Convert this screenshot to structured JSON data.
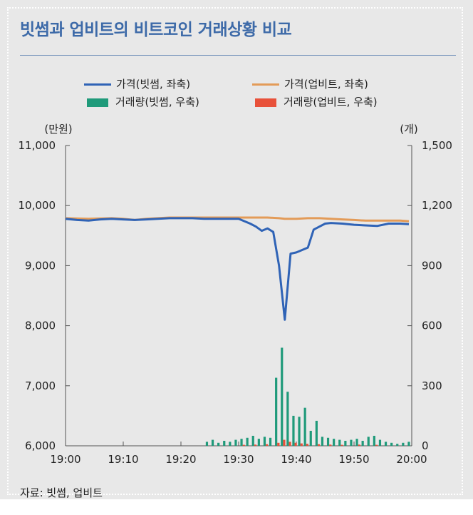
{
  "chart_data": {
    "type": "line+bar",
    "title": "빗썸과 업비트의 비트코인 거래상황 비교",
    "source": "자료: 빗썸, 업비트",
    "y_left_unit": "(만원)",
    "y_right_unit": "(개)",
    "y_left_lim": [
      6000,
      11000
    ],
    "y_right_lim": [
      0,
      1500
    ],
    "y_left_ticks": [
      "11,000",
      "10,000",
      "9,000",
      "8,000",
      "7,000",
      "6,000"
    ],
    "y_right_ticks": [
      "1,500",
      "1,200",
      "900",
      "600",
      "300",
      "0"
    ],
    "x_ticks": [
      "19:00",
      "19:10",
      "19:20",
      "19:30",
      "19:40",
      "19:50",
      "20:00"
    ],
    "x_minutes": [
      0,
      10,
      20,
      30,
      40,
      50,
      60
    ],
    "legend": [
      {
        "label": "가격(빗썸, 좌축)",
        "color": "#2f63b6",
        "kind": "line"
      },
      {
        "label": "가격(업비트, 좌축)",
        "color": "#e39b58",
        "kind": "line"
      },
      {
        "label": "거래량(빗썸, 우축)",
        "color": "#1f9a7a",
        "kind": "bar"
      },
      {
        "label": "거래량(업비트, 우축)",
        "color": "#e8513a",
        "kind": "bar"
      }
    ],
    "series_price_bithumb": [
      [
        0,
        9780
      ],
      [
        2,
        9760
      ],
      [
        4,
        9750
      ],
      [
        6,
        9770
      ],
      [
        8,
        9780
      ],
      [
        10,
        9770
      ],
      [
        12,
        9760
      ],
      [
        14,
        9770
      ],
      [
        16,
        9780
      ],
      [
        18,
        9790
      ],
      [
        20,
        9790
      ],
      [
        22,
        9790
      ],
      [
        24,
        9780
      ],
      [
        26,
        9780
      ],
      [
        28,
        9780
      ],
      [
        30,
        9780
      ],
      [
        31,
        9740
      ],
      [
        32,
        9700
      ],
      [
        33,
        9650
      ],
      [
        34,
        9580
      ],
      [
        35,
        9620
      ],
      [
        36,
        9560
      ],
      [
        37,
        9000
      ],
      [
        38,
        8100
      ],
      [
        39,
        9200
      ],
      [
        40,
        9220
      ],
      [
        41,
        9260
      ],
      [
        42,
        9300
      ],
      [
        43,
        9600
      ],
      [
        44,
        9650
      ],
      [
        45,
        9700
      ],
      [
        46,
        9710
      ],
      [
        48,
        9700
      ],
      [
        50,
        9680
      ],
      [
        52,
        9670
      ],
      [
        54,
        9660
      ],
      [
        56,
        9700
      ],
      [
        58,
        9700
      ],
      [
        59.5,
        9690
      ]
    ],
    "series_price_upbit": [
      [
        0,
        9790
      ],
      [
        4,
        9780
      ],
      [
        8,
        9790
      ],
      [
        10,
        9780
      ],
      [
        12,
        9760
      ],
      [
        14,
        9780
      ],
      [
        16,
        9790
      ],
      [
        18,
        9800
      ],
      [
        20,
        9800
      ],
      [
        24,
        9800
      ],
      [
        28,
        9800
      ],
      [
        32,
        9800
      ],
      [
        35,
        9800
      ],
      [
        37,
        9790
      ],
      [
        38,
        9780
      ],
      [
        40,
        9780
      ],
      [
        42,
        9790
      ],
      [
        44,
        9790
      ],
      [
        46,
        9780
      ],
      [
        48,
        9770
      ],
      [
        50,
        9760
      ],
      [
        52,
        9750
      ],
      [
        54,
        9750
      ],
      [
        56,
        9750
      ],
      [
        58,
        9750
      ],
      [
        59.5,
        9740
      ]
    ],
    "bars_volume_bithumb": [
      [
        24.5,
        20
      ],
      [
        25.5,
        30
      ],
      [
        26.5,
        15
      ],
      [
        27.5,
        25
      ],
      [
        28.5,
        20
      ],
      [
        29.5,
        30
      ],
      [
        30.5,
        35
      ],
      [
        31.5,
        40
      ],
      [
        32.5,
        50
      ],
      [
        33.5,
        35
      ],
      [
        34.5,
        45
      ],
      [
        35.5,
        40
      ],
      [
        36.5,
        340
      ],
      [
        37.5,
        490
      ],
      [
        38.5,
        270
      ],
      [
        39.5,
        150
      ],
      [
        40.5,
        145
      ],
      [
        41.5,
        190
      ],
      [
        42.5,
        75
      ],
      [
        43.5,
        125
      ],
      [
        44.5,
        45
      ],
      [
        45.5,
        40
      ],
      [
        46.5,
        35
      ],
      [
        47.5,
        30
      ],
      [
        48.5,
        25
      ],
      [
        49.5,
        30
      ],
      [
        50.5,
        35
      ],
      [
        51.5,
        25
      ],
      [
        52.5,
        45
      ],
      [
        53.5,
        50
      ],
      [
        54.5,
        30
      ],
      [
        55.5,
        20
      ],
      [
        56.5,
        15
      ],
      [
        57.5,
        10
      ],
      [
        58.5,
        15
      ],
      [
        59.5,
        20
      ]
    ],
    "bars_volume_upbit": [
      [
        30.5,
        5
      ],
      [
        32.5,
        6
      ],
      [
        34.5,
        8
      ],
      [
        36.5,
        15
      ],
      [
        37.5,
        30
      ],
      [
        38.5,
        20
      ],
      [
        39.5,
        15
      ],
      [
        40.5,
        12
      ],
      [
        41.5,
        10
      ],
      [
        43.5,
        8
      ],
      [
        45.5,
        6
      ],
      [
        47.5,
        5
      ],
      [
        50.5,
        6
      ],
      [
        53.5,
        5
      ]
    ]
  }
}
